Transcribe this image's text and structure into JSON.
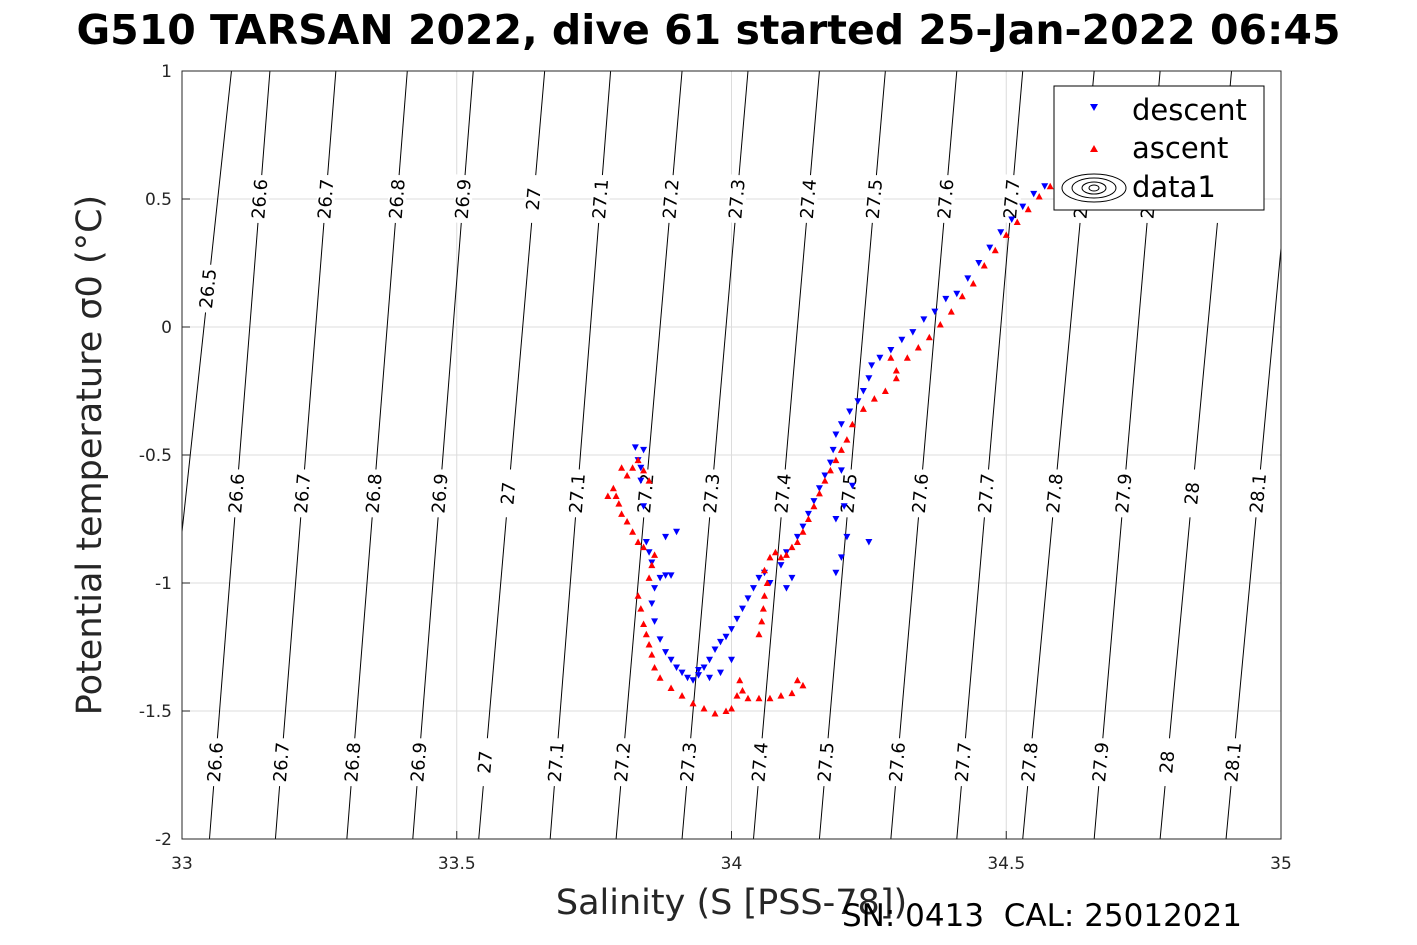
{
  "title": "G510 TARSAN 2022, dive 61 started 25-Jan-2022 06:45",
  "footer": "SN: 0413  CAL: 25012021",
  "chart_data": {
    "type": "scatter",
    "title": "G510 TARSAN 2022, dive 61 started 25-Jan-2022 06:45",
    "xlabel": "Salinity (S [PSS-78])",
    "ylabel": "Potential temperature σ0 (°C)",
    "xlim": [
      33,
      35
    ],
    "ylim": [
      -2,
      1
    ],
    "xticks": [
      "33",
      "33.5",
      "34",
      "34.5",
      "35"
    ],
    "yticks": [
      "-2",
      "-1.5",
      "-1",
      "-0.5",
      "0",
      "0.5",
      "1"
    ],
    "grid": true,
    "legend_position": "top-right",
    "legend": [
      "descent",
      "ascent",
      "data1"
    ],
    "colors": {
      "descent": "#0000ff",
      "ascent": "#ff0000",
      "contour": "#000000"
    },
    "isopycnals": {
      "levels": [
        26.5,
        26.6,
        26.7,
        26.8,
        26.9,
        27,
        27.1,
        27.2,
        27.3,
        27.4,
        27.5,
        27.6,
        27.7,
        27.8,
        27.9,
        28,
        28.1
      ],
      "labels": [
        "26.5",
        "26.6",
        "26.7",
        "26.8",
        "26.9",
        "27",
        "27.1",
        "27.2",
        "27.3",
        "27.4",
        "27.5",
        "27.6",
        "27.7",
        "27.8",
        "27.9",
        "28",
        "28.1"
      ],
      "salinity_at_temp_1": [
        33.09,
        33.16,
        33.28,
        33.41,
        33.53,
        33.66,
        33.78,
        33.91,
        34.03,
        34.16,
        34.28,
        34.41,
        34.53,
        34.66,
        34.78,
        34.91,
        35.03
      ],
      "salinity_at_temp_neg2": [
        32.94,
        33.05,
        33.17,
        33.3,
        33.42,
        33.54,
        33.67,
        33.79,
        33.91,
        34.04,
        34.16,
        34.29,
        34.41,
        34.53,
        34.66,
        34.78,
        34.9
      ]
    },
    "series": [
      {
        "name": "descent",
        "marker": "triangle-down",
        "color": "#0000ff",
        "points": [
          [
            34.57,
            0.55
          ],
          [
            34.55,
            0.52
          ],
          [
            34.53,
            0.47
          ],
          [
            34.51,
            0.42
          ],
          [
            34.49,
            0.37
          ],
          [
            34.47,
            0.31
          ],
          [
            34.45,
            0.25
          ],
          [
            34.43,
            0.19
          ],
          [
            34.41,
            0.13
          ],
          [
            34.39,
            0.11
          ],
          [
            34.37,
            0.06
          ],
          [
            34.35,
            0.03
          ],
          [
            34.33,
            -0.02
          ],
          [
            34.31,
            -0.05
          ],
          [
            34.29,
            -0.09
          ],
          [
            34.27,
            -0.12
          ],
          [
            34.255,
            -0.15
          ],
          [
            34.25,
            -0.2
          ],
          [
            34.24,
            -0.25
          ],
          [
            34.23,
            -0.29
          ],
          [
            34.215,
            -0.33
          ],
          [
            34.2,
            -0.38
          ],
          [
            34.19,
            -0.42
          ],
          [
            34.185,
            -0.48
          ],
          [
            34.18,
            -0.53
          ],
          [
            34.17,
            -0.58
          ],
          [
            34.16,
            -0.63
          ],
          [
            34.15,
            -0.68
          ],
          [
            34.14,
            -0.73
          ],
          [
            34.13,
            -0.78
          ],
          [
            34.2,
            -0.56
          ],
          [
            34.22,
            -0.62
          ],
          [
            34.205,
            -0.7
          ],
          [
            34.19,
            -0.75
          ],
          [
            34.21,
            -0.82
          ],
          [
            34.2,
            -0.9
          ],
          [
            34.19,
            -0.96
          ],
          [
            34.25,
            -0.84
          ],
          [
            34.12,
            -0.82
          ],
          [
            34.1,
            -0.88
          ],
          [
            34.09,
            -0.93
          ],
          [
            34.11,
            -0.98
          ],
          [
            34.1,
            -1.02
          ],
          [
            34.07,
            -1.0
          ],
          [
            34.06,
            -0.96
          ],
          [
            34.05,
            -0.98
          ],
          [
            34.04,
            -1.02
          ],
          [
            34.03,
            -1.06
          ],
          [
            34.02,
            -1.1
          ],
          [
            34.01,
            -1.14
          ],
          [
            34.0,
            -1.18
          ],
          [
            33.99,
            -1.21
          ],
          [
            33.98,
            -1.23
          ],
          [
            33.97,
            -1.26
          ],
          [
            33.96,
            -1.3
          ],
          [
            33.95,
            -1.33
          ],
          [
            33.94,
            -1.36
          ],
          [
            33.93,
            -1.38
          ],
          [
            33.92,
            -1.37
          ],
          [
            33.91,
            -1.35
          ],
          [
            33.9,
            -1.33
          ],
          [
            33.89,
            -1.3
          ],
          [
            33.88,
            -1.27
          ],
          [
            33.87,
            -1.22
          ],
          [
            33.86,
            -1.15
          ],
          [
            33.855,
            -1.08
          ],
          [
            33.86,
            -1.02
          ],
          [
            33.87,
            -0.98
          ],
          [
            33.88,
            -0.97
          ],
          [
            33.89,
            -0.97
          ],
          [
            33.855,
            -0.92
          ],
          [
            33.85,
            -0.88
          ],
          [
            33.845,
            -0.84
          ],
          [
            33.84,
            -0.7
          ],
          [
            33.835,
            -0.6
          ],
          [
            33.83,
            -0.52
          ],
          [
            33.825,
            -0.47
          ],
          [
            33.84,
            -0.48
          ],
          [
            33.835,
            -0.55
          ],
          [
            33.9,
            -0.8
          ],
          [
            33.88,
            -0.82
          ],
          [
            33.94,
            -1.34
          ],
          [
            33.96,
            -1.37
          ],
          [
            33.98,
            -1.35
          ],
          [
            34.0,
            -1.3
          ]
        ]
      },
      {
        "name": "ascent",
        "marker": "triangle-up",
        "color": "#ff0000",
        "points": [
          [
            34.58,
            0.55
          ],
          [
            34.56,
            0.51
          ],
          [
            34.54,
            0.46
          ],
          [
            34.52,
            0.41
          ],
          [
            34.5,
            0.36
          ],
          [
            34.48,
            0.3
          ],
          [
            34.46,
            0.24
          ],
          [
            34.44,
            0.17
          ],
          [
            34.42,
            0.12
          ],
          [
            34.4,
            0.06
          ],
          [
            34.38,
            0.01
          ],
          [
            34.36,
            -0.04
          ],
          [
            34.34,
            -0.08
          ],
          [
            34.32,
            -0.12
          ],
          [
            34.3,
            -0.17
          ],
          [
            34.29,
            -0.12
          ],
          [
            34.3,
            -0.2
          ],
          [
            34.28,
            -0.25
          ],
          [
            34.26,
            -0.28
          ],
          [
            34.24,
            -0.32
          ],
          [
            34.22,
            -0.38
          ],
          [
            34.21,
            -0.44
          ],
          [
            34.2,
            -0.48
          ],
          [
            34.19,
            -0.52
          ],
          [
            34.18,
            -0.56
          ],
          [
            34.17,
            -0.6
          ],
          [
            34.16,
            -0.65
          ],
          [
            34.15,
            -0.7
          ],
          [
            34.14,
            -0.75
          ],
          [
            34.13,
            -0.8
          ],
          [
            34.12,
            -0.84
          ],
          [
            34.11,
            -0.86
          ],
          [
            34.1,
            -0.89
          ],
          [
            34.09,
            -0.9
          ],
          [
            34.08,
            -0.88
          ],
          [
            34.07,
            -0.9
          ],
          [
            34.065,
            -1.0
          ],
          [
            34.06,
            -1.05
          ],
          [
            34.058,
            -1.1
          ],
          [
            34.055,
            -1.15
          ],
          [
            34.05,
            -1.2
          ],
          [
            34.06,
            -0.95
          ],
          [
            34.03,
            -1.45
          ],
          [
            34.05,
            -1.45
          ],
          [
            34.07,
            -1.45
          ],
          [
            34.09,
            -1.44
          ],
          [
            34.11,
            -1.43
          ],
          [
            34.13,
            -1.4
          ],
          [
            34.12,
            -1.38
          ],
          [
            34.02,
            -1.42
          ],
          [
            34.015,
            -1.38
          ],
          [
            34.01,
            -1.44
          ],
          [
            34.0,
            -1.49
          ],
          [
            33.99,
            -1.5
          ],
          [
            33.97,
            -1.51
          ],
          [
            33.95,
            -1.49
          ],
          [
            33.93,
            -1.47
          ],
          [
            33.91,
            -1.44
          ],
          [
            33.89,
            -1.41
          ],
          [
            33.87,
            -1.37
          ],
          [
            33.86,
            -1.33
          ],
          [
            33.855,
            -1.28
          ],
          [
            33.85,
            -1.24
          ],
          [
            33.845,
            -1.2
          ],
          [
            33.84,
            -1.16
          ],
          [
            33.835,
            -1.1
          ],
          [
            33.83,
            -1.05
          ],
          [
            33.85,
            -0.98
          ],
          [
            33.855,
            -0.93
          ],
          [
            33.86,
            -0.89
          ],
          [
            33.84,
            -0.86
          ],
          [
            33.83,
            -0.84
          ],
          [
            33.82,
            -0.8
          ],
          [
            33.81,
            -0.76
          ],
          [
            33.8,
            -0.73
          ],
          [
            33.795,
            -0.69
          ],
          [
            33.79,
            -0.66
          ],
          [
            33.785,
            -0.63
          ],
          [
            33.81,
            -0.58
          ],
          [
            33.82,
            -0.55
          ],
          [
            33.83,
            -0.52
          ],
          [
            33.84,
            -0.56
          ],
          [
            33.85,
            -0.6
          ],
          [
            33.8,
            -0.55
          ],
          [
            33.775,
            -0.66
          ]
        ]
      }
    ],
    "contour_series": {
      "name": "data1",
      "type": "contour"
    }
  }
}
